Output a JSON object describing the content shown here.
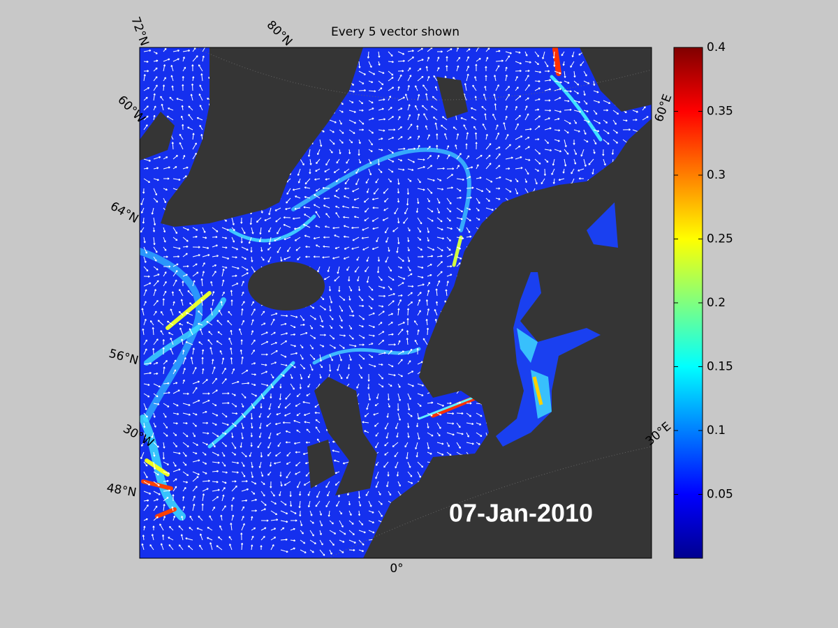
{
  "map": {
    "title": "Every 5 vector shown",
    "date": "07-Jan-2010",
    "graticule_labels": [
      "72°N",
      "80°N",
      "60°W",
      "64°N",
      "56°N",
      "30°W",
      "48°N",
      "0°",
      "30°E",
      "60°E"
    ],
    "colorbar": {
      "clim": [
        0,
        0.4
      ],
      "ticks": [
        0.05,
        0.1,
        0.15,
        0.2,
        0.25,
        0.3,
        0.35,
        0.4
      ]
    }
  }
}
